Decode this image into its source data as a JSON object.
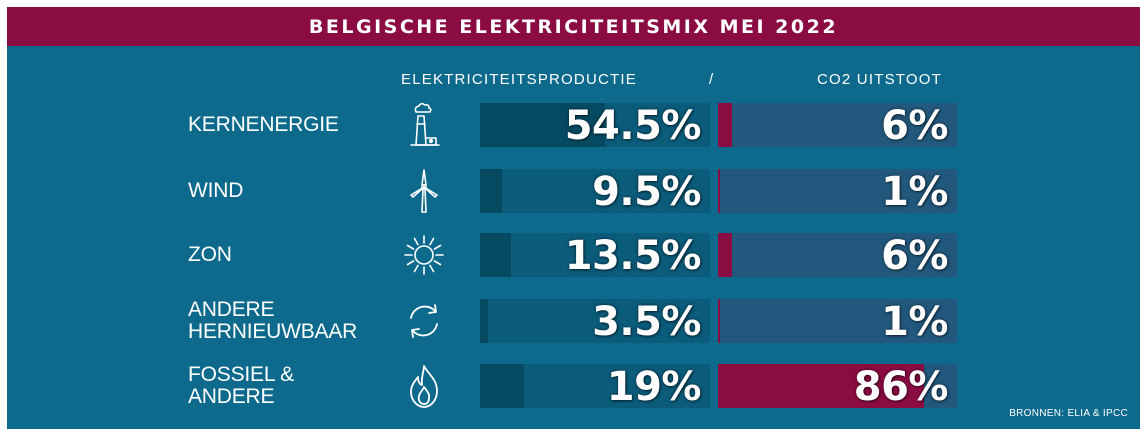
{
  "title": "BELGISCHE ELEKTRICITEITSMIX MEI 2022",
  "headers": {
    "production": "ELEKTRICITEITSPRODUCTIE",
    "separator": "/",
    "co2": "CO2 UITSTOOT"
  },
  "source": "BRONNEN: ELIA & IPCC",
  "colors": {
    "background": "#0d6a8d",
    "banner": "#8b0b43",
    "prod_fill": "#064a62",
    "prod_track": "#0b5b7a",
    "co2_fill": "#8b0b43",
    "co2_track": "#22587d"
  },
  "chart_data": {
    "type": "bar",
    "title": "BELGISCHE ELEKTRICITEITSMIX MEI 2022",
    "categories": [
      "KERNENERGIE",
      "WIND",
      "ZON",
      "ANDERE HERNIEUWBAAR",
      "FOSSIEL & ANDERE"
    ],
    "series": [
      {
        "name": "ELEKTRICITEITSPRODUCTIE",
        "values": [
          54.5,
          9.5,
          13.5,
          3.5,
          19
        ],
        "labels": [
          "54.5%",
          "9.5%",
          "13.5%",
          "3.5%",
          "19%"
        ]
      },
      {
        "name": "CO2 UITSTOOT",
        "values": [
          6,
          1,
          6,
          1,
          86
        ],
        "labels": [
          "6%",
          "1%",
          "6%",
          "1%",
          "86%"
        ]
      }
    ],
    "ylim": [
      0,
      100
    ],
    "unit": "%",
    "rows": [
      {
        "label_lines": [
          "KERNENERGIE"
        ],
        "icon": "nuclear-plant-icon"
      },
      {
        "label_lines": [
          "WIND"
        ],
        "icon": "wind-turbine-icon"
      },
      {
        "label_lines": [
          "ZON"
        ],
        "icon": "sun-icon"
      },
      {
        "label_lines": [
          "ANDERE",
          "HERNIEUWBAAR"
        ],
        "icon": "recycle-arrows-icon"
      },
      {
        "label_lines": [
          "FOSSIEL &",
          "ANDERE"
        ],
        "icon": "flame-icon"
      }
    ]
  }
}
